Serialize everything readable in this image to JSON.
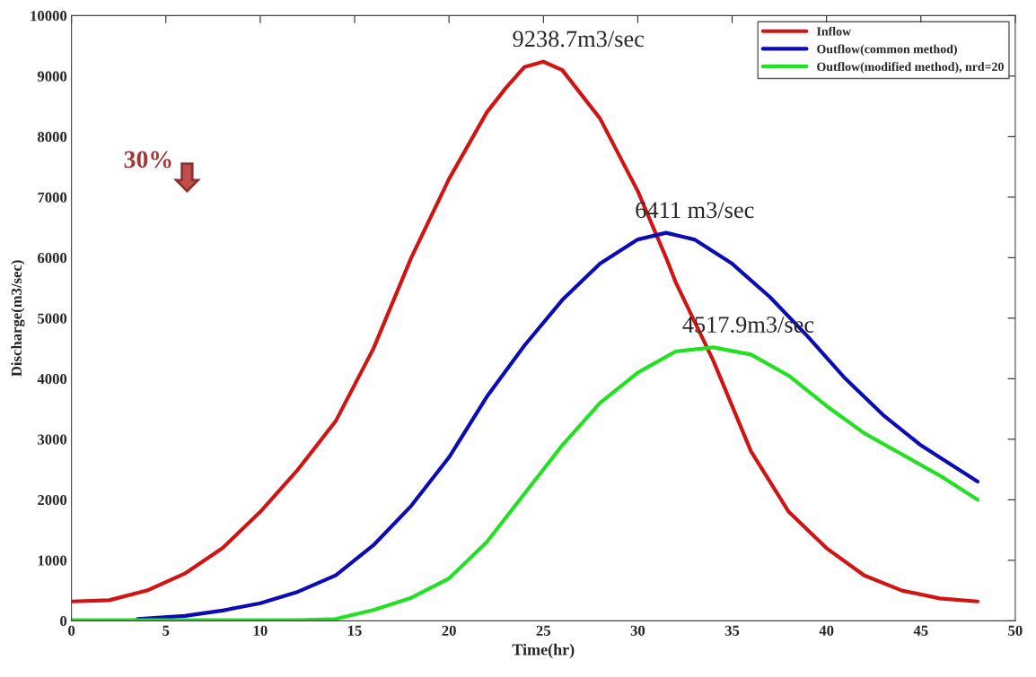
{
  "chart_data": {
    "type": "line",
    "xlabel": "Time(hr)",
    "ylabel": "Discharge(m3/sec)",
    "xlim": [
      0,
      50
    ],
    "xticks": [
      0,
      5,
      10,
      15,
      20,
      25,
      30,
      35,
      40,
      45,
      50
    ],
    "ylim": [
      0,
      10000
    ],
    "yticks": [
      0,
      1000,
      2000,
      3000,
      4000,
      5000,
      6000,
      7000,
      8000,
      9000,
      10000
    ],
    "grid": false,
    "legend": "top right",
    "marker": "none",
    "line_style": "solid",
    "series": [
      {
        "name": "Inflow",
        "color": "#d01414",
        "x": [
          0,
          2,
          4,
          6,
          8,
          10,
          12,
          14,
          16,
          18,
          20,
          22,
          23,
          24,
          25,
          26,
          28,
          30,
          31.5,
          32,
          34,
          36,
          38,
          40,
          42,
          44,
          46,
          48
        ],
        "values": [
          320,
          340,
          500,
          780,
          1200,
          1800,
          2500,
          3300,
          4500,
          6000,
          7300,
          8400,
          8800,
          9150,
          9238.7,
          9100,
          8300,
          7100,
          6000,
          5600,
          4300,
          2800,
          1800,
          1200,
          750,
          500,
          370,
          320
        ]
      },
      {
        "name": "Outflow(common method)",
        "color": "#0c0cb4",
        "x": [
          3.5,
          6,
          8,
          10,
          12,
          14,
          16,
          18,
          20,
          22,
          24,
          26,
          28,
          30,
          31.5,
          33,
          35,
          37,
          39,
          41,
          43,
          45,
          48
        ],
        "values": [
          30,
          80,
          170,
          290,
          480,
          750,
          1250,
          1900,
          2700,
          3700,
          4550,
          5300,
          5900,
          6300,
          6411,
          6300,
          5900,
          5350,
          4700,
          4000,
          3400,
          2900,
          2300
        ]
      },
      {
        "name": "Outflow(modified method), nrd=20",
        "color": "#22e022",
        "x": [
          0,
          12,
          14,
          16,
          18,
          20,
          22,
          24,
          26,
          28,
          30,
          32,
          34,
          36,
          38,
          40,
          42,
          44,
          46,
          48
        ],
        "values": [
          10,
          10,
          30,
          180,
          380,
          700,
          1300,
          2100,
          2900,
          3600,
          4100,
          4450,
          4517.9,
          4400,
          4050,
          3550,
          3100,
          2750,
          2400,
          2000
        ]
      }
    ],
    "annotations": [
      {
        "text": "9238.7m3/sec",
        "x": 25,
        "y": 9238.7
      },
      {
        "text": "6411 m3/sec",
        "x": 31.5,
        "y": 6411
      },
      {
        "text": "4517.9m3/sec",
        "x": 34,
        "y": 4517.9
      },
      "30%"
    ]
  }
}
